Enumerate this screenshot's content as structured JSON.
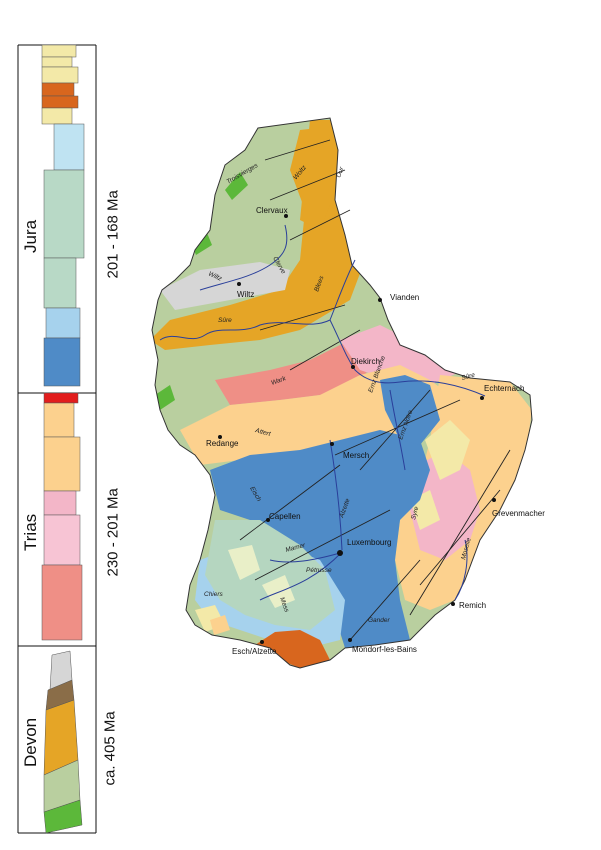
{
  "stratigraphy": {
    "periods": [
      {
        "name": "Jura",
        "age": "201 - 168 Ma"
      },
      {
        "name": "Trias",
        "age": "230 - 201 Ma"
      },
      {
        "name": "Devon",
        "age": "ca. 405 Ma"
      }
    ]
  },
  "map": {
    "towns": [
      {
        "name": "Clervaux"
      },
      {
        "name": "Wiltz"
      },
      {
        "name": "Vianden"
      },
      {
        "name": "Diekirch"
      },
      {
        "name": "Echternach"
      },
      {
        "name": "Redange"
      },
      {
        "name": "Mersch"
      },
      {
        "name": "Capellen"
      },
      {
        "name": "Luxembourg"
      },
      {
        "name": "Grevenmacher"
      },
      {
        "name": "Remich"
      },
      {
        "name": "Esch/Alzette"
      },
      {
        "name": "Mondorf-les-Bains"
      }
    ],
    "rivers": [
      "Troisvierges",
      "Woltz",
      "Our",
      "Wiltz",
      "Clerve",
      "Blees",
      "Sûre",
      "Wark",
      "Attert",
      "Ernz Blanche",
      "Ernz Noire",
      "Sûre",
      "Eisch",
      "Alzette",
      "Syre",
      "Mamer",
      "Pétrusse",
      "Moselle",
      "Chiers",
      "Mess",
      "Gander"
    ],
    "colors": {
      "devon_green": "#b9cf9f",
      "bright_green": "#5cb83a",
      "gray": "#d6d6d6",
      "orange": "#e5a526",
      "rust": "#d8661e",
      "salmon": "#ef8f86",
      "pink": "#f3b6c8",
      "sand": "#fcd18e",
      "blue": "#4f8bc7",
      "light_blue": "#a6d2ed",
      "light_green": "#b5d6c0",
      "yellow_cream": "#f3e9a8",
      "river": "#2a3f9a"
    }
  }
}
